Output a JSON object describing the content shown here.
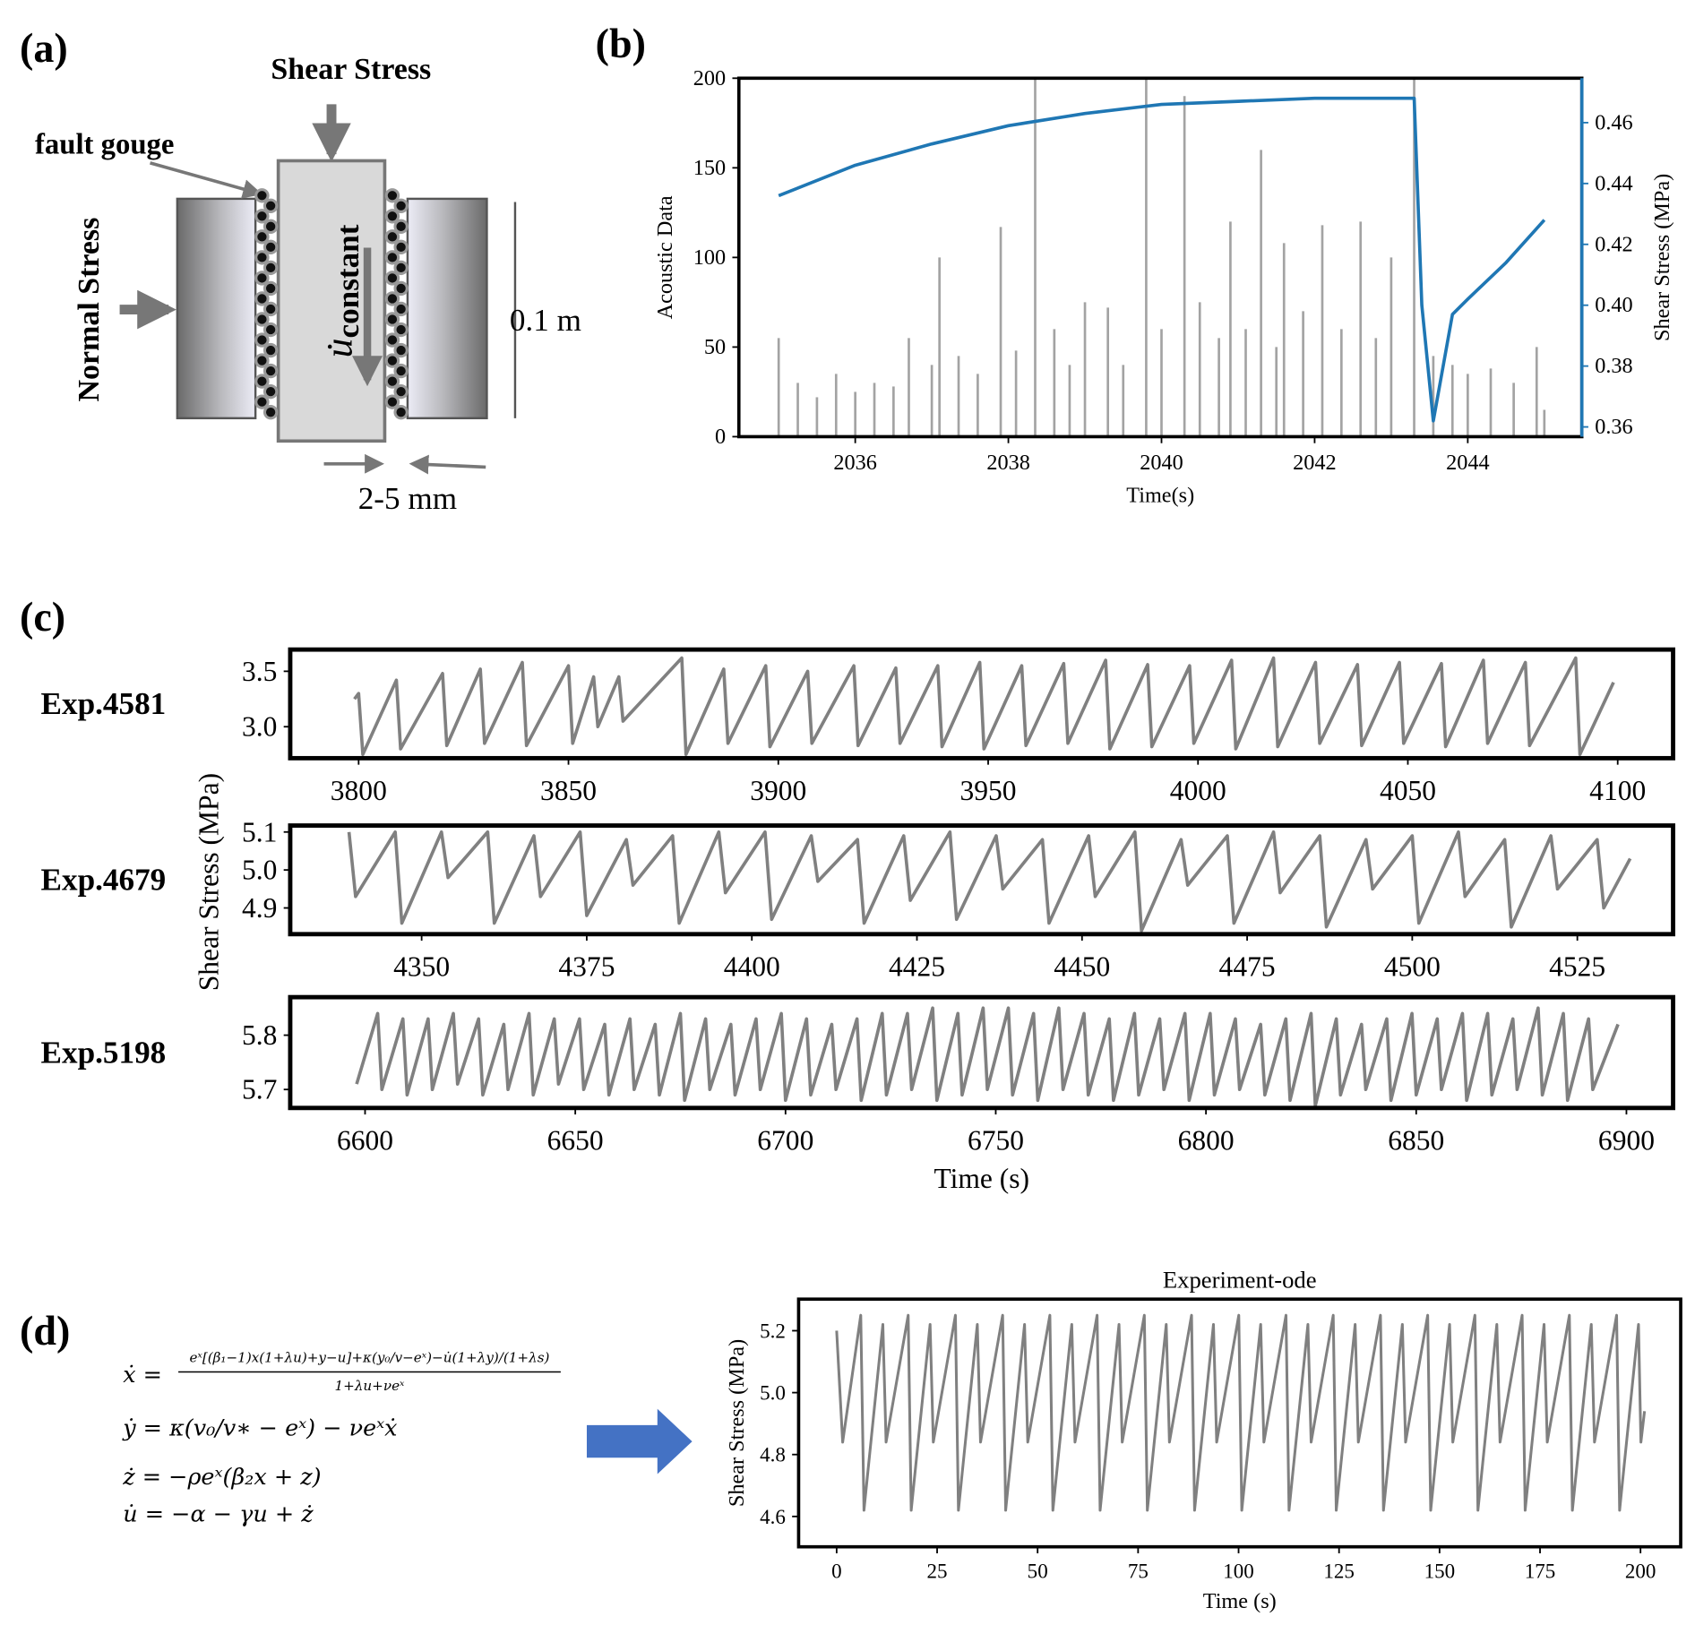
{
  "panels": [
    "(a)",
    "(b)",
    "(c)",
    "(d)"
  ],
  "diagram": {
    "shear_stress": "Shear Stress",
    "fault_gouge": "fault gouge",
    "normal_stress": "Normal Stress",
    "velocity": "u̇",
    "velocity_subscript": "constant",
    "height": "0.1 m",
    "gap": "2-5 mm"
  },
  "equations": [
    {
      "lhs": "ẋ =",
      "numerator": "eˣ[(β₁−1)x(1+λu)+y−u]+κ(y₀/v−eˣ)−u̇(1+λy)/(1+λs)",
      "denominator": "1+λu+νeˣ"
    },
    {
      "text": "ẏ = κ(v₀/v∗ − eˣ) − νeˣẋ"
    },
    {
      "text": "ż = −ρeˣ(β₂x + z)"
    },
    {
      "text": "u̇ = −α − γu + ż"
    }
  ],
  "chart_data": [
    {
      "type": "line",
      "xlabel": "Time(s)",
      "ylabel": "Acoustic Data",
      "y2label": "Shear Stress (MPa)",
      "xlim": [
        2034.48,
        2045.49
      ],
      "xticks": [
        2036,
        2038,
        2040,
        2042,
        2044
      ],
      "ylim": [
        0,
        200
      ],
      "yticks": [
        0,
        50,
        100,
        150,
        200
      ],
      "y2lim": [
        0.3568,
        0.4746
      ],
      "y2ticks": [
        0.36,
        0.38,
        {
          "value": 0.4,
          "label": "0.40"
        },
        0.42,
        0.44,
        0.46
      ],
      "y2color": "#1f77b4",
      "series": [
        {
          "type": "bar",
          "color": "#a3a3a3",
          "x": [
            2035,
            2035.25,
            2035.5,
            2035.75,
            2036,
            2036.25,
            2036.5,
            2036.7,
            2037,
            2037.1,
            2037.35,
            2037.6,
            2037.9,
            2038.1,
            2038.35,
            2038.6,
            2038.8,
            2039,
            2039.3,
            2039.5,
            2039.8,
            2040,
            2040.3,
            2040.5,
            2040.75,
            2040.9,
            2041.1,
            2041.3,
            2041.5,
            2041.6,
            2041.85,
            2042.1,
            2042.35,
            2042.6,
            2042.8,
            2043,
            2043.3,
            2043.55,
            2043.8,
            2044,
            2044.3,
            2044.6,
            2044.9,
            2045
          ],
          "values": [
            55,
            30,
            22,
            35,
            25,
            30,
            28,
            55,
            40,
            100,
            45,
            35,
            117,
            48,
            200,
            60,
            40,
            75,
            72,
            40,
            200,
            60,
            190,
            75,
            55,
            120,
            60,
            160,
            50,
            108,
            70,
            118,
            60,
            120,
            55,
            100,
            200,
            45,
            40,
            35,
            38,
            30,
            50,
            15
          ]
        },
        {
          "axis": "y2",
          "color": "#1f77b4",
          "x": [
            2035,
            2036,
            2037,
            2038,
            2039,
            2040,
            2041,
            2042,
            2043,
            2043.3,
            2043.4,
            2043.55,
            2043.8,
            2044,
            2044.5,
            2045
          ],
          "values": [
            0.436,
            0.446,
            0.453,
            0.459,
            0.463,
            0.466,
            0.467,
            0.468,
            0.468,
            0.468,
            0.4,
            0.362,
            0.397,
            0.402,
            0.414,
            0.428
          ]
        }
      ]
    },
    {
      "type": "line",
      "label": "Exp.4581",
      "xlim": [
        3783.7,
        4113.2
      ],
      "xticks": [
        3800,
        3850,
        3900,
        3950,
        4000,
        4050,
        4100
      ],
      "ylim": [
        2.716,
        3.696
      ],
      "yticks": [
        {
          "value": 3,
          "label": "3.0"
        },
        3.5
      ],
      "series": [
        {
          "color": "#808080",
          "x": [
            3799,
            3800,
            3801,
            3809,
            3810,
            3820,
            3821,
            3829,
            3830,
            3839,
            3840,
            3850,
            3851,
            3856,
            3857,
            3862,
            3863,
            3877,
            3878,
            3887,
            3888,
            3897,
            3898,
            3907,
            3908,
            3918,
            3919,
            3928,
            3929,
            3938,
            3939,
            3948,
            3949,
            3958,
            3959,
            3968,
            3969,
            3978,
            3979,
            3988,
            3989,
            3998,
            3999,
            4008,
            4009,
            4018,
            4019,
            4028,
            4029,
            4038,
            4039,
            4048,
            4049,
            4058,
            4059,
            4068,
            4069,
            4078,
            4079,
            4090,
            4091,
            4099
          ],
          "values": [
            3.25,
            3.3,
            2.75,
            3.42,
            2.8,
            3.48,
            2.83,
            3.52,
            2.85,
            3.58,
            2.83,
            3.55,
            2.85,
            3.45,
            3.0,
            3.45,
            3.05,
            3.62,
            2.75,
            3.52,
            2.85,
            3.55,
            2.82,
            3.5,
            2.85,
            3.55,
            2.83,
            3.53,
            2.85,
            3.55,
            2.82,
            3.58,
            2.8,
            3.55,
            2.83,
            3.57,
            2.85,
            3.6,
            2.8,
            3.56,
            2.82,
            3.55,
            2.85,
            3.6,
            2.8,
            3.62,
            2.82,
            3.58,
            2.85,
            3.56,
            2.83,
            3.58,
            2.85,
            3.57,
            2.82,
            3.6,
            2.85,
            3.58,
            2.83,
            3.62,
            2.75,
            3.4
          ]
        }
      ]
    },
    {
      "type": "line",
      "label": "Exp.4679",
      "ylabel": "Shear Stress (MPa)",
      "xlim": [
        4330.1,
        4539.5
      ],
      "xticks": [
        4350,
        4375,
        4400,
        4425,
        4450,
        4475,
        4500,
        4525
      ],
      "ylim": [
        4.831,
        5.117
      ],
      "yticks": [
        4.9,
        {
          "value": 5,
          "label": "5.0"
        },
        5.1
      ],
      "series": [
        {
          "color": "#808080",
          "x": [
            4339,
            4340,
            4346,
            4347,
            4353,
            4354,
            4360,
            4361,
            4367,
            4368,
            4374,
            4375,
            4381,
            4382,
            4388,
            4389,
            4395,
            4396,
            4402,
            4403,
            4409,
            4410,
            4416,
            4417,
            4423,
            4424,
            4430,
            4431,
            4437,
            4438,
            4444,
            4445,
            4451,
            4452,
            4458,
            4459,
            4465,
            4466,
            4472,
            4473,
            4479,
            4480,
            4486,
            4487,
            4493,
            4494,
            4500,
            4501,
            4507,
            4508,
            4514,
            4515,
            4521,
            4522,
            4528,
            4529,
            4533
          ],
          "values": [
            5.1,
            4.93,
            5.1,
            4.86,
            5.1,
            4.98,
            5.1,
            4.86,
            5.09,
            4.93,
            5.1,
            4.88,
            5.08,
            4.96,
            5.09,
            4.86,
            5.1,
            4.94,
            5.1,
            4.87,
            5.09,
            4.97,
            5.08,
            4.86,
            5.09,
            4.92,
            5.1,
            4.87,
            5.09,
            4.95,
            5.08,
            4.86,
            5.09,
            4.93,
            5.1,
            4.84,
            5.08,
            4.96,
            5.09,
            4.86,
            5.1,
            4.94,
            5.09,
            4.85,
            5.08,
            4.95,
            5.09,
            4.86,
            5.1,
            4.93,
            5.08,
            4.85,
            5.09,
            4.95,
            5.08,
            4.9,
            5.03
          ]
        }
      ]
    },
    {
      "type": "line",
      "label": "Exp.5198",
      "xlabel": "Time (s)",
      "xlim": [
        6582.2,
        6911.1
      ],
      "xticks": [
        6600,
        6650,
        6700,
        6750,
        6800,
        6850,
        6900
      ],
      "ylim": [
        5.666,
        5.87
      ],
      "yticks": [
        5.7,
        5.8
      ],
      "series": [
        {
          "color": "#808080",
          "x": [
            6598,
            6603,
            6604,
            6609,
            6610,
            6615,
            6616,
            6621,
            6622,
            6627,
            6628,
            6633,
            6634,
            6639,
            6640,
            6645,
            6646,
            6651,
            6652,
            6657,
            6658,
            6663,
            6664,
            6669,
            6670,
            6675,
            6676,
            6681,
            6682,
            6687,
            6688,
            6693,
            6694,
            6699,
            6700,
            6705,
            6706,
            6711,
            6712,
            6717,
            6718,
            6723,
            6724,
            6729,
            6730,
            6735,
            6736,
            6741,
            6742,
            6747,
            6748,
            6753,
            6754,
            6759,
            6760,
            6765,
            6766,
            6771,
            6772,
            6777,
            6778,
            6783,
            6784,
            6789,
            6790,
            6795,
            6796,
            6801,
            6802,
            6807,
            6808,
            6813,
            6814,
            6819,
            6820,
            6825,
            6826,
            6831,
            6832,
            6837,
            6838,
            6843,
            6844,
            6849,
            6850,
            6855,
            6856,
            6861,
            6862,
            6867,
            6868,
            6873,
            6874,
            6879,
            6880,
            6885,
            6886,
            6891,
            6892,
            6898
          ],
          "values": [
            5.71,
            5.84,
            5.7,
            5.83,
            5.69,
            5.83,
            5.7,
            5.84,
            5.71,
            5.83,
            5.69,
            5.82,
            5.7,
            5.84,
            5.69,
            5.83,
            5.71,
            5.83,
            5.7,
            5.82,
            5.69,
            5.83,
            5.7,
            5.82,
            5.69,
            5.84,
            5.68,
            5.83,
            5.7,
            5.82,
            5.69,
            5.83,
            5.7,
            5.84,
            5.68,
            5.83,
            5.69,
            5.82,
            5.7,
            5.83,
            5.68,
            5.84,
            5.69,
            5.84,
            5.7,
            5.85,
            5.68,
            5.84,
            5.69,
            5.85,
            5.7,
            5.85,
            5.69,
            5.84,
            5.68,
            5.85,
            5.7,
            5.84,
            5.69,
            5.83,
            5.68,
            5.84,
            5.69,
            5.83,
            5.7,
            5.84,
            5.68,
            5.84,
            5.69,
            5.83,
            5.7,
            5.82,
            5.69,
            5.83,
            5.68,
            5.84,
            5.67,
            5.83,
            5.69,
            5.82,
            5.7,
            5.83,
            5.68,
            5.84,
            5.69,
            5.83,
            5.7,
            5.84,
            5.68,
            5.84,
            5.69,
            5.83,
            5.7,
            5.85,
            5.69,
            5.84,
            5.68,
            5.83,
            5.7,
            5.82
          ]
        }
      ]
    },
    {
      "type": "line",
      "title": "Experiment-ode",
      "xlabel": "Time (s)",
      "ylabel": "Shear Stress (MPa)",
      "xlim": [
        -9.46,
        210
      ],
      "xticks": [
        0,
        25,
        50,
        75,
        100,
        125,
        150,
        175,
        200
      ],
      "ylim": [
        4.502,
        5.302
      ],
      "yticks": [
        4.6,
        4.8,
        {
          "value": 5,
          "label": "5.0"
        },
        5.2
      ],
      "series": [
        {
          "color": "#808080",
          "x": [
            0,
            1.5,
            6,
            6.8,
            11.5,
            12.3,
            17.8,
            18.55,
            23.25,
            24.05,
            29.55,
            30.3,
            35,
            35.8,
            41.3,
            42.05,
            46.75,
            47.55,
            53.05,
            53.8,
            58.5,
            59.3,
            64.8,
            65.55,
            70.25,
            71.05,
            76.55,
            77.3,
            82,
            82.8,
            88.3,
            89.05,
            93.75,
            94.55,
            100.05,
            100.8,
            105.5,
            106.3,
            111.8,
            112.55,
            117.25,
            118.05,
            123.55,
            124.3,
            129,
            129.8,
            135.3,
            136.05,
            140.75,
            141.55,
            147.05,
            147.8,
            152.5,
            153.3,
            158.8,
            159.55,
            164.25,
            165.05,
            170.55,
            171.3,
            176,
            176.8,
            182.3,
            183.05,
            187.75,
            188.55,
            194.05,
            194.8,
            199.5,
            200.1,
            201
          ],
          "values": [
            5.2,
            4.84,
            5.25,
            4.62,
            5.22,
            4.84,
            5.25,
            4.62,
            5.22,
            4.84,
            5.25,
            4.62,
            5.22,
            4.84,
            5.25,
            4.62,
            5.22,
            4.84,
            5.25,
            4.62,
            5.22,
            4.84,
            5.25,
            4.62,
            5.22,
            4.84,
            5.25,
            4.62,
            5.22,
            4.84,
            5.25,
            4.62,
            5.22,
            4.84,
            5.25,
            4.62,
            5.22,
            4.84,
            5.25,
            4.62,
            5.22,
            4.84,
            5.25,
            4.62,
            5.22,
            4.84,
            5.25,
            4.62,
            5.22,
            4.84,
            5.25,
            4.62,
            5.22,
            4.84,
            5.25,
            4.62,
            5.22,
            4.84,
            5.25,
            4.62,
            5.22,
            4.84,
            5.25,
            4.62,
            5.22,
            4.84,
            5.25,
            4.62,
            5.22,
            4.84,
            4.94
          ]
        }
      ]
    }
  ]
}
